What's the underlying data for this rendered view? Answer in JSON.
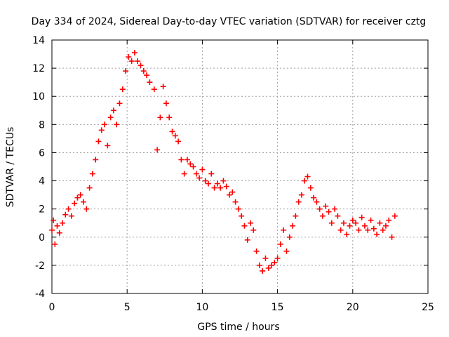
{
  "chart_data": {
    "type": "scatter",
    "title": "Day 334 of 2024, Sidereal Day-to-day VTEC variation (SDTVAR) for receiver cztg",
    "xlabel": "GPS time / hours",
    "ylabel": "SDTVAR / TECUs",
    "xlim": [
      0,
      25
    ],
    "ylim": [
      -4,
      14
    ],
    "xticks": [
      "0",
      "5",
      "10",
      "15",
      "20",
      "25"
    ],
    "yticks": [
      "-4",
      "-2",
      "0",
      "2",
      "4",
      "6",
      "8",
      "10",
      "12",
      "14"
    ],
    "grid": true,
    "marker": "+",
    "series": [
      {
        "name": "SDTVAR",
        "color": "#ff0000",
        "x": [
          0.0,
          0.1,
          0.2,
          0.35,
          0.5,
          0.7,
          0.9,
          1.1,
          1.3,
          1.5,
          1.7,
          1.9,
          2.1,
          2.3,
          2.5,
          2.7,
          2.9,
          3.1,
          3.3,
          3.5,
          3.7,
          3.9,
          4.1,
          4.3,
          4.5,
          4.7,
          4.9,
          5.1,
          5.3,
          5.5,
          5.7,
          5.9,
          6.1,
          6.3,
          6.5,
          6.8,
          7.0,
          7.2,
          7.4,
          7.6,
          7.8,
          8.0,
          8.2,
          8.4,
          8.6,
          8.8,
          9.0,
          9.2,
          9.4,
          9.6,
          9.8,
          10.0,
          10.2,
          10.4,
          10.6,
          10.8,
          11.0,
          11.2,
          11.4,
          11.6,
          11.8,
          12.0,
          12.2,
          12.4,
          12.6,
          12.8,
          13.0,
          13.2,
          13.4,
          13.6,
          13.8,
          14.0,
          14.2,
          14.4,
          14.6,
          14.8,
          15.0,
          15.2,
          15.4,
          15.6,
          15.8,
          16.0,
          16.2,
          16.4,
          16.6,
          16.8,
          17.0,
          17.2,
          17.4,
          17.6,
          17.8,
          18.0,
          18.2,
          18.4,
          18.6,
          18.8,
          19.0,
          19.2,
          19.4,
          19.6,
          19.8,
          20.0,
          20.2,
          20.4,
          20.6,
          20.8,
          21.0,
          21.2,
          21.4,
          21.6,
          21.8,
          22.0,
          22.2,
          22.4,
          22.6,
          22.8
        ],
        "y": [
          0.5,
          1.2,
          -0.5,
          0.8,
          0.3,
          1.0,
          1.6,
          2.0,
          1.5,
          2.4,
          2.8,
          3.0,
          2.5,
          2.0,
          3.5,
          4.5,
          5.5,
          6.8,
          7.6,
          8.0,
          6.5,
          8.5,
          9.0,
          8.0,
          9.5,
          10.5,
          11.8,
          12.8,
          12.5,
          13.1,
          12.5,
          12.2,
          11.8,
          11.5,
          11.0,
          10.5,
          6.2,
          8.5,
          10.7,
          9.5,
          8.5,
          7.5,
          7.2,
          6.8,
          5.5,
          4.5,
          5.5,
          5.2,
          5.0,
          4.5,
          4.2,
          4.8,
          4.0,
          3.8,
          4.5,
          3.5,
          3.8,
          3.5,
          4.0,
          3.6,
          3.0,
          3.2,
          2.5,
          2.0,
          1.5,
          0.8,
          -0.2,
          1.0,
          0.5,
          -1.0,
          -2.0,
          -2.4,
          -1.5,
          -2.2,
          -2.0,
          -1.8,
          -1.5,
          -0.5,
          0.5,
          -1.0,
          0.0,
          0.8,
          1.5,
          2.5,
          3.0,
          4.0,
          4.3,
          3.5,
          2.8,
          2.5,
          2.0,
          1.5,
          2.2,
          1.8,
          1.0,
          2.0,
          1.5,
          0.5,
          1.0,
          0.2,
          0.8,
          1.2,
          1.0,
          0.5,
          1.4,
          0.8,
          0.5,
          1.2,
          0.6,
          0.2,
          1.0,
          0.5,
          0.8,
          1.2,
          0.0,
          1.5
        ]
      }
    ]
  }
}
